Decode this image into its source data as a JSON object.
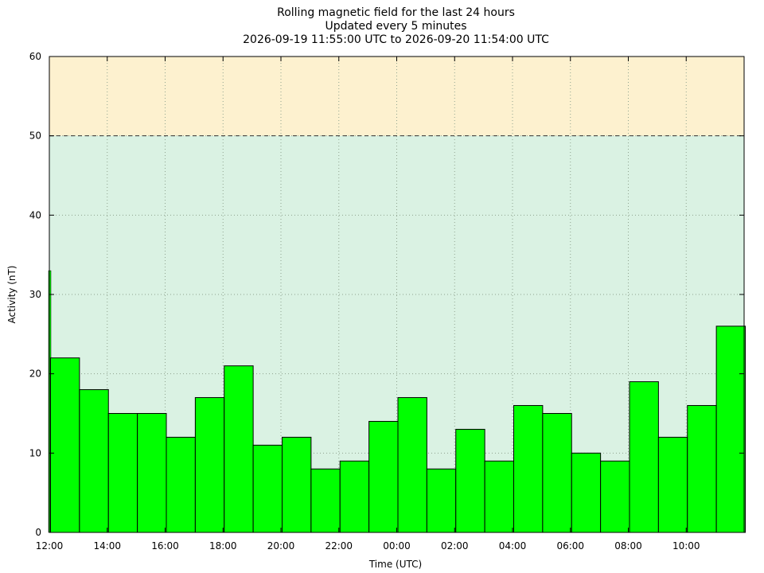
{
  "chart_data": {
    "type": "bar",
    "title": "Rolling magnetic field for the last 24 hours",
    "subtitle": "Updated every 5 minutes",
    "time_range": "2026-09-19 11:55:00 UTC to 2026-09-20 11:54:00 UTC",
    "xlabel": "Time (UTC)",
    "ylabel": "Activity (nT)",
    "ylim": [
      0,
      60
    ],
    "y_ticks": [
      "0",
      "10",
      "20",
      "30",
      "40",
      "50",
      "60"
    ],
    "x_ticks": [
      "12:00",
      "14:00",
      "16:00",
      "18:00",
      "20:00",
      "22:00",
      "00:00",
      "02:00",
      "04:00",
      "06:00",
      "08:00",
      "10:00"
    ],
    "grid": true,
    "threshold": 50,
    "colors": {
      "bar": "#00ff00",
      "bar_edge": "#000000",
      "zone_normal": "#daf2e3",
      "zone_high": "#fdf1cf",
      "grid": "#8fa38f"
    },
    "first_partial_value": 33,
    "hourly_values": [
      22,
      18,
      15,
      15,
      12,
      17,
      21,
      11,
      12,
      8,
      9,
      14,
      17,
      8,
      13,
      9,
      16,
      15,
      10,
      9,
      19,
      12,
      16,
      26
    ]
  }
}
